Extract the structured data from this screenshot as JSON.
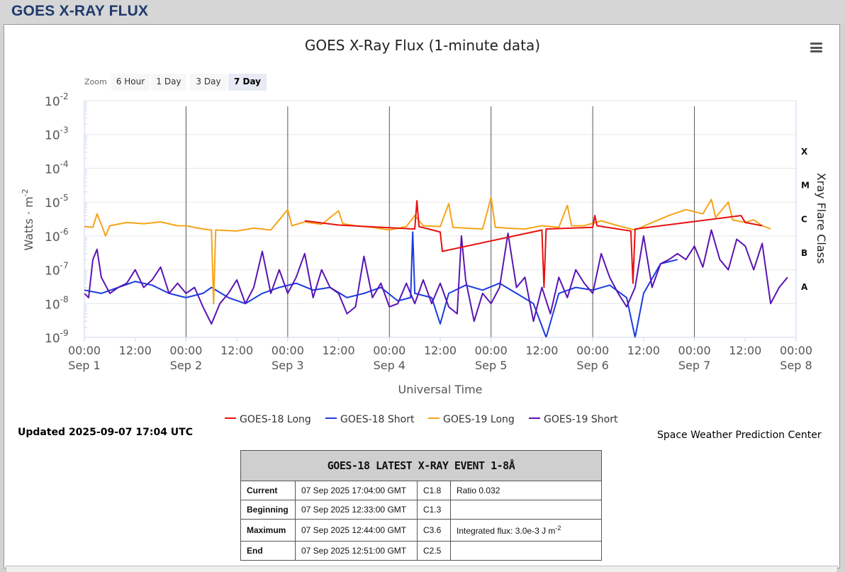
{
  "page": {
    "header_title": "GOES X-RAY FLUX"
  },
  "toolbar": {
    "zoom_label": "Zoom",
    "buttons": [
      {
        "label": "6 Hour",
        "active": false
      },
      {
        "label": "1 Day",
        "active": false
      },
      {
        "label": "3 Day",
        "active": false
      },
      {
        "label": "7 Day",
        "active": true
      }
    ]
  },
  "colors": {
    "g18_long": "#e81010",
    "g18_short": "#1a3be0",
    "g19_long": "#f5a418",
    "g19_short": "#5a14b4"
  },
  "chart_data": {
    "type": "line",
    "title": "GOES X-Ray Flux (1-minute data)",
    "xlabel": "Universal Time",
    "ylabel": "Watts · m",
    "ylabel_sup": "-2",
    "y2label": "Xray Flare Class",
    "y_scale": "log",
    "ylim": [
      1e-09,
      0.01
    ],
    "y_ticks": [
      {
        "base": "10",
        "exp": "-2"
      },
      {
        "base": "10",
        "exp": "-3"
      },
      {
        "base": "10",
        "exp": "-4"
      },
      {
        "base": "10",
        "exp": "-5"
      },
      {
        "base": "10",
        "exp": "-6"
      },
      {
        "base": "10",
        "exp": "-7"
      },
      {
        "base": "10",
        "exp": "-8"
      },
      {
        "base": "10",
        "exp": "-9"
      }
    ],
    "flare_classes": [
      "X",
      "M",
      "C",
      "B",
      "A"
    ],
    "x_ticks": [
      {
        "time": "00:00",
        "date": "Sep 1"
      },
      {
        "time": "12:00",
        "date": ""
      },
      {
        "time": "00:00",
        "date": "Sep 2"
      },
      {
        "time": "12:00",
        "date": ""
      },
      {
        "time": "00:00",
        "date": "Sep 3"
      },
      {
        "time": "12:00",
        "date": ""
      },
      {
        "time": "00:00",
        "date": "Sep 4"
      },
      {
        "time": "12:00",
        "date": ""
      },
      {
        "time": "00:00",
        "date": "Sep 5"
      },
      {
        "time": "12:00",
        "date": ""
      },
      {
        "time": "00:00",
        "date": "Sep 6"
      },
      {
        "time": "12:00",
        "date": ""
      },
      {
        "time": "00:00",
        "date": "Sep 7"
      },
      {
        "time": "12:00",
        "date": ""
      },
      {
        "time": "00:00",
        "date": "Sep 8"
      }
    ],
    "xlim": [
      "2025-09-01 00:00",
      "2025-09-08 00:00"
    ],
    "x_hours": [
      0,
      6,
      10,
      14,
      18,
      22,
      26,
      30,
      34,
      38,
      42,
      46,
      50,
      54,
      58,
      62,
      66,
      70,
      74,
      78,
      82,
      86,
      90,
      94,
      98,
      102,
      106,
      110,
      114,
      118,
      122,
      126,
      130,
      134,
      138,
      142,
      146,
      150,
      154,
      158,
      162,
      161
    ],
    "series": [
      {
        "name": "GOES-18 Long",
        "color_key": "g18_long",
        "points": [
          [
            52,
            2.8e-06
          ],
          [
            60,
            2.1e-06
          ],
          [
            78,
            1.6e-06
          ],
          [
            78.5,
            1.1e-05
          ],
          [
            79,
            1.9e-06
          ],
          [
            84,
            1.3e-06
          ],
          [
            84.5,
            3.5e-07
          ],
          [
            108,
            1.5e-06
          ],
          [
            108.5,
            3e-08
          ],
          [
            109,
            1.6e-06
          ],
          [
            120,
            1.8e-06
          ],
          [
            120.5,
            4e-06
          ],
          [
            121,
            2e-06
          ],
          [
            129,
            1.4e-06
          ],
          [
            129.5,
            4e-08
          ],
          [
            130,
            1.6e-06
          ],
          [
            155,
            4e-06
          ],
          [
            156,
            2.5e-06
          ],
          [
            160,
            2e-06
          ]
        ]
      },
      {
        "name": "GOES-18 Short",
        "color_key": "g18_short",
        "points": [
          [
            0,
            2.5e-08
          ],
          [
            4,
            2e-08
          ],
          [
            8,
            3e-08
          ],
          [
            12,
            4.5e-08
          ],
          [
            16,
            3.5e-08
          ],
          [
            20,
            2e-08
          ],
          [
            24,
            1.5e-08
          ],
          [
            28,
            2e-08
          ],
          [
            30,
            3e-08
          ],
          [
            34,
            1.5e-08
          ],
          [
            38,
            1e-08
          ],
          [
            42,
            2e-08
          ],
          [
            46,
            3e-08
          ],
          [
            50,
            4e-08
          ],
          [
            54,
            2.5e-08
          ],
          [
            58,
            3e-08
          ],
          [
            62,
            1.5e-08
          ],
          [
            66,
            2e-08
          ],
          [
            70,
            3e-08
          ],
          [
            74,
            1.2e-08
          ],
          [
            77,
            1.5e-08
          ],
          [
            77.5,
            1.3e-06
          ],
          [
            78,
            2e-08
          ],
          [
            82,
            1.5e-08
          ],
          [
            84,
            2.5e-09
          ],
          [
            86,
            2e-08
          ],
          [
            90,
            3.5e-08
          ],
          [
            94,
            2.5e-08
          ],
          [
            98,
            4e-08
          ],
          [
            102,
            2e-08
          ],
          [
            106,
            1e-08
          ],
          [
            109,
            1e-09
          ],
          [
            112,
            2e-08
          ],
          [
            116,
            3e-08
          ],
          [
            120,
            2.5e-08
          ],
          [
            124,
            3.5e-08
          ],
          [
            128,
            1.5e-08
          ],
          [
            130,
            1e-09
          ],
          [
            132,
            2e-08
          ],
          [
            136,
            1.5e-07
          ],
          [
            140,
            2e-07
          ]
        ]
      },
      {
        "name": "GOES-19 Long",
        "color_key": "g19_long",
        "points": [
          [
            0,
            1.9e-06
          ],
          [
            2,
            1.8e-06
          ],
          [
            3,
            4.5e-06
          ],
          [
            4,
            2.2e-06
          ],
          [
            5,
            1e-06
          ],
          [
            6,
            2e-06
          ],
          [
            10,
            2.5e-06
          ],
          [
            14,
            2.3e-06
          ],
          [
            18,
            2.6e-06
          ],
          [
            22,
            2e-06
          ],
          [
            24,
            2e-06
          ],
          [
            28,
            1.6e-06
          ],
          [
            30,
            1.5e-06
          ],
          [
            30.5,
            1e-08
          ],
          [
            31,
            1.5e-06
          ],
          [
            36,
            1.4e-06
          ],
          [
            40,
            1.7e-06
          ],
          [
            44,
            1.5e-06
          ],
          [
            48,
            6e-06
          ],
          [
            49,
            2e-06
          ],
          [
            52,
            2.6e-06
          ],
          [
            56,
            2.2e-06
          ],
          [
            60,
            5.5e-06
          ],
          [
            61,
            2.3e-06
          ],
          [
            64,
            2e-06
          ],
          [
            68,
            1.8e-06
          ],
          [
            72,
            1.5e-06
          ],
          [
            76,
            1.9e-06
          ],
          [
            78,
            4e-06
          ],
          [
            80,
            2e-06
          ],
          [
            84,
            1.9e-06
          ],
          [
            86,
            9e-06
          ],
          [
            87,
            1.8e-06
          ],
          [
            90,
            1.7e-06
          ],
          [
            94,
            1.6e-06
          ],
          [
            96,
            1.4e-05
          ],
          [
            97,
            1.8e-06
          ],
          [
            100,
            1.7e-06
          ],
          [
            104,
            1.6e-06
          ],
          [
            108,
            2e-06
          ],
          [
            112,
            1.8e-06
          ],
          [
            114,
            8e-06
          ],
          [
            115,
            2e-06
          ],
          [
            118,
            2e-06
          ],
          [
            122,
            2.8e-06
          ],
          [
            126,
            2e-06
          ],
          [
            130,
            1.5e-06
          ],
          [
            134,
            2.5e-06
          ],
          [
            138,
            4e-06
          ],
          [
            142,
            6e-06
          ],
          [
            146,
            4.5e-06
          ],
          [
            148,
            1.2e-05
          ],
          [
            149,
            3.5e-06
          ],
          [
            152,
            1e-05
          ],
          [
            153,
            3e-06
          ],
          [
            156,
            2.5e-06
          ],
          [
            158,
            3e-06
          ],
          [
            160,
            2e-06
          ],
          [
            162,
            1.6e-06
          ]
        ]
      },
      {
        "name": "GOES-19 Short",
        "color_key": "g19_short",
        "points": [
          [
            0,
            2e-08
          ],
          [
            1,
            1.5e-08
          ],
          [
            2,
            2e-07
          ],
          [
            3,
            4e-07
          ],
          [
            4,
            6e-08
          ],
          [
            6,
            2e-08
          ],
          [
            8,
            3e-08
          ],
          [
            10,
            4e-08
          ],
          [
            12,
            1e-07
          ],
          [
            14,
            3e-08
          ],
          [
            16,
            5e-08
          ],
          [
            18,
            1.2e-07
          ],
          [
            20,
            2e-08
          ],
          [
            22,
            4e-08
          ],
          [
            24,
            2e-08
          ],
          [
            26,
            3e-08
          ],
          [
            28,
            8e-09
          ],
          [
            30,
            2.5e-09
          ],
          [
            32,
            1e-08
          ],
          [
            34,
            2e-08
          ],
          [
            36,
            5e-08
          ],
          [
            38,
            1e-08
          ],
          [
            40,
            3e-08
          ],
          [
            42,
            3.5e-07
          ],
          [
            44,
            2e-08
          ],
          [
            46,
            1e-07
          ],
          [
            48,
            2e-08
          ],
          [
            50,
            6e-08
          ],
          [
            52,
            3e-07
          ],
          [
            54,
            1.5e-08
          ],
          [
            56,
            1e-07
          ],
          [
            58,
            3e-08
          ],
          [
            60,
            2e-08
          ],
          [
            62,
            5e-09
          ],
          [
            64,
            8e-09
          ],
          [
            66,
            2.5e-07
          ],
          [
            68,
            1.5e-08
          ],
          [
            70,
            4e-08
          ],
          [
            72,
            8e-09
          ],
          [
            74,
            1e-08
          ],
          [
            76,
            4e-08
          ],
          [
            78,
            1e-08
          ],
          [
            80,
            5e-08
          ],
          [
            82,
            1e-08
          ],
          [
            84,
            4e-08
          ],
          [
            86,
            8e-09
          ],
          [
            88,
            5e-09
          ],
          [
            89,
            1e-06
          ],
          [
            90,
            5e-08
          ],
          [
            92,
            3e-09
          ],
          [
            94,
            2e-08
          ],
          [
            96,
            1e-08
          ],
          [
            98,
            3e-08
          ],
          [
            100,
            1.2e-06
          ],
          [
            102,
            3e-08
          ],
          [
            104,
            6e-08
          ],
          [
            106,
            3e-09
          ],
          [
            108,
            3e-08
          ],
          [
            110,
            5e-09
          ],
          [
            112,
            6e-08
          ],
          [
            114,
            1.5e-08
          ],
          [
            116,
            1e-07
          ],
          [
            118,
            4e-08
          ],
          [
            120,
            2e-08
          ],
          [
            122,
            3e-07
          ],
          [
            124,
            6e-08
          ],
          [
            126,
            2e-08
          ],
          [
            128,
            8e-09
          ],
          [
            130,
            3e-08
          ],
          [
            132,
            1e-06
          ],
          [
            134,
            3e-08
          ],
          [
            136,
            1.5e-07
          ],
          [
            138,
            2e-07
          ],
          [
            140,
            3e-07
          ],
          [
            142,
            2e-07
          ],
          [
            144,
            5e-07
          ],
          [
            146,
            1.2e-07
          ],
          [
            148,
            1.5e-06
          ],
          [
            150,
            2e-07
          ],
          [
            152,
            1e-07
          ],
          [
            154,
            8e-07
          ],
          [
            156,
            5e-07
          ],
          [
            158,
            1e-07
          ],
          [
            160,
            6e-07
          ],
          [
            162,
            1e-08
          ],
          [
            164,
            3e-08
          ],
          [
            166,
            6e-08
          ]
        ]
      }
    ]
  },
  "footer": {
    "updated": "Updated 2025-09-07 17:04 UTC",
    "credit": "Space Weather Prediction Center"
  },
  "event_table": {
    "title": "GOES-18 LATEST X-RAY EVENT 1-8Å",
    "rows": [
      {
        "label": "Current",
        "time": "07 Sep 2025 17:04:00 GMT",
        "class": "C1.8",
        "note": "Ratio 0.032",
        "note_sup": ""
      },
      {
        "label": "Beginning",
        "time": "07 Sep 2025 12:33:00 GMT",
        "class": "C1.3",
        "note": "",
        "note_sup": ""
      },
      {
        "label": "Maximum",
        "time": "07 Sep 2025 12:44:00 GMT",
        "class": "C3.6",
        "note": "Integrated flux: 3.0e-3 J m",
        "note_sup": "-2"
      },
      {
        "label": "End",
        "time": "07 Sep 2025 12:51:00 GMT",
        "class": "C2.5",
        "note": "",
        "note_sup": ""
      }
    ]
  }
}
